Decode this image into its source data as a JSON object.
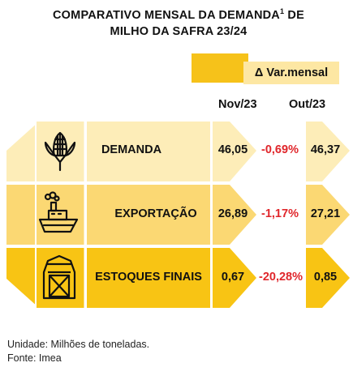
{
  "header": {
    "title_line1": "COMPARATIVO MENSAL DA DEMANDA",
    "footnote_marker": "1",
    "title_line1_end": " DE",
    "title_line2": "MILHO DA SAFRA 23/24"
  },
  "legend": {
    "label": "Δ Var.mensal"
  },
  "columns": {
    "current": "Nov/23",
    "previous": "Out/23"
  },
  "rows": [
    {
      "label": "DEMANDA",
      "icon": "corn-icon",
      "current": "46,05",
      "variation": "-0,69%",
      "previous": "46,37"
    },
    {
      "label": "EXPORTAÇÃO",
      "icon": "ship-icon",
      "current": "26,89",
      "variation": "-1,17%",
      "previous": "27,21"
    },
    {
      "label": "ESTOQUES FINAIS",
      "icon": "barn-icon",
      "current": "0,67",
      "variation": "-20,28%",
      "previous": "0,85"
    }
  ],
  "footer": {
    "unit": "Unidade: Milhões de toneladas.",
    "source": "Fonte: Imea"
  },
  "colors": {
    "row1": "#fdedb8",
    "row2": "#fbd873",
    "row3": "#f8c414",
    "accent": "#f6c21a",
    "negative": "#e0262b"
  }
}
